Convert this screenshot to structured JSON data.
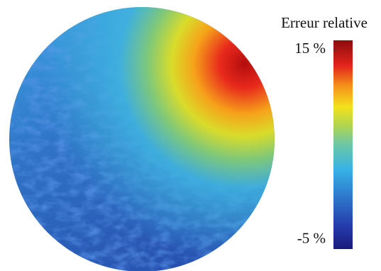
{
  "chart_data": {
    "type": "heatmap",
    "colorbar": {
      "title": "Erreur relative",
      "lim": [
        -6,
        16
      ],
      "ticks": [
        {
          "value": 15,
          "label": "15 %"
        },
        {
          "value": -5,
          "label": "-5 %"
        }
      ]
    }
  }
}
